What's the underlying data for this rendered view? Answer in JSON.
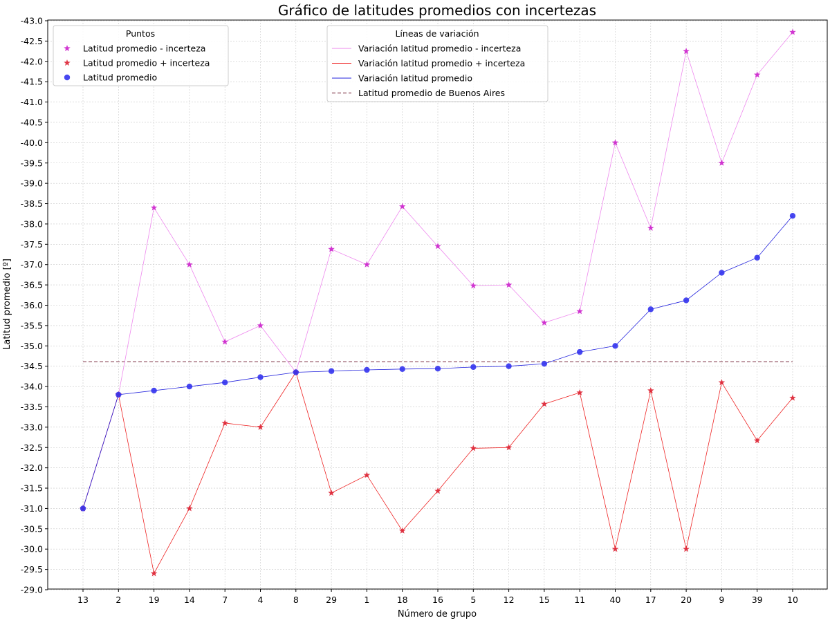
{
  "chart_data": {
    "type": "line",
    "title": "Gráfico de latitudes promedios con incertezas",
    "xlabel": "Número de grupo",
    "ylabel": "Latitud promedio [º]",
    "categories": [
      "13",
      "2",
      "19",
      "14",
      "7",
      "4",
      "8",
      "29",
      "1",
      "18",
      "16",
      "5",
      "12",
      "15",
      "11",
      "40",
      "17",
      "20",
      "9",
      "39",
      "10"
    ],
    "y_axis": {
      "min": -29.0,
      "max": -43.0,
      "inverted": true,
      "tick_step": 0.5
    },
    "grid": true,
    "series": [
      {
        "name": "Latitud promedio - incerteza",
        "line_name": "Variación latitud promedio - incerteza",
        "marker": "star",
        "color": "#cc22cc",
        "line_color": "#ee88ee",
        "values": [
          -31.0,
          -33.8,
          -38.4,
          -37.0,
          -35.1,
          -35.5,
          -34.35,
          -37.38,
          -37.0,
          -38.43,
          -37.45,
          -36.48,
          -36.5,
          -35.57,
          -35.85,
          -40.0,
          -37.9,
          -42.25,
          -39.5,
          -41.67,
          -42.72
        ]
      },
      {
        "name": "Latitud promedio + incerteza",
        "line_name": "Variación latitud promedio + incerteza",
        "marker": "star",
        "color": "#dd2233",
        "line_color": "#ee2222",
        "values": [
          -31.0,
          -33.8,
          -29.4,
          -31.0,
          -33.1,
          -33.0,
          -34.35,
          -31.38,
          -31.82,
          -30.45,
          -31.43,
          -32.48,
          -32.5,
          -33.57,
          -33.85,
          -30.0,
          -33.9,
          -30.0,
          -34.1,
          -32.67,
          -33.72
        ]
      },
      {
        "name": "Latitud promedio",
        "line_name": "Variación latitud promedio",
        "marker": "circle",
        "color": "#3333ee",
        "line_color": "#2222dd",
        "values": [
          -31.0,
          -33.8,
          -33.9,
          -34.0,
          -34.1,
          -34.23,
          -34.35,
          -34.38,
          -34.41,
          -34.43,
          -34.44,
          -34.48,
          -34.5,
          -34.56,
          -34.85,
          -35.0,
          -35.9,
          -36.12,
          -36.8,
          -37.17,
          -38.2
        ]
      }
    ],
    "reference_line": {
      "name": "Latitud promedio de Buenos Aires",
      "value": -34.61,
      "color": "#884455",
      "style": "dashed"
    },
    "legends": [
      {
        "title": "Puntos",
        "placement": "upper-left",
        "entries": [
          "Latitud promedio - incerteza",
          "Latitud promedio + incerteza",
          "Latitud promedio"
        ]
      },
      {
        "title": "Líneas de variación",
        "placement": "upper-center",
        "entries": [
          "Variación latitud promedio - incerteza",
          "Variación latitud promedio + incerteza",
          "Variación latitud promedio",
          "Latitud promedio de Buenos Aires"
        ]
      }
    ]
  }
}
